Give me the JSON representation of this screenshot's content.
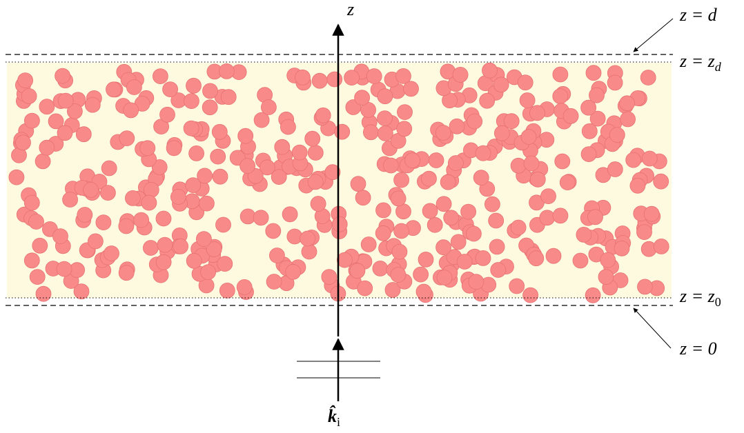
{
  "labels": {
    "axis": "z",
    "top_outer": "z = d",
    "top_inner": {
      "main": "z = z",
      "sub": "d"
    },
    "bottom_inner": {
      "main": "z = z",
      "sub": "0"
    },
    "bottom_outer": "z = 0",
    "incident": {
      "main": "k̂",
      "sub": "i"
    }
  }
}
